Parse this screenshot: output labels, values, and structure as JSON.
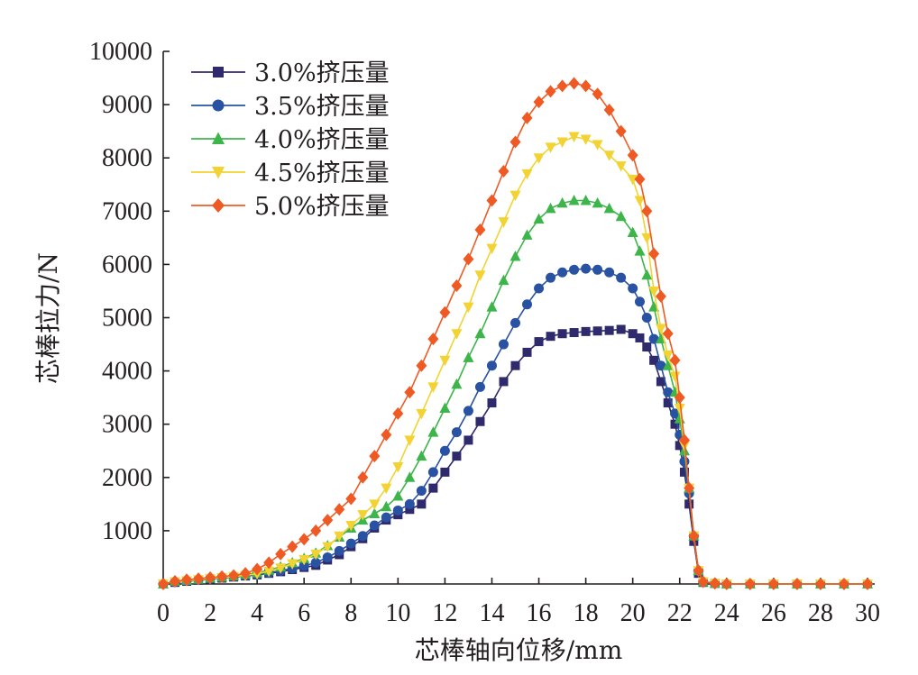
{
  "chart_data": {
    "type": "line",
    "title": "",
    "xlabel": "芯棒轴向位移/mm",
    "ylabel": "芯棒拉力/N",
    "xlim": [
      0,
      30
    ],
    "ylim": [
      0,
      10000
    ],
    "xticks": [
      "0",
      "2",
      "4",
      "6",
      "8",
      "10",
      "12",
      "14",
      "16",
      "18",
      "20",
      "22",
      "24",
      "26",
      "28",
      "30"
    ],
    "yticks": [
      "1000",
      "2000",
      "3000",
      "4000",
      "5000",
      "6000",
      "7000",
      "8000",
      "9000",
      "10000"
    ],
    "grid": false,
    "legend_position": "top-left",
    "series": [
      {
        "name": "3.0%挤压量",
        "color": "#2e2a6b",
        "marker": "square",
        "x": [
          0,
          0.5,
          1,
          1.5,
          2,
          2.5,
          3,
          3.5,
          4,
          4.5,
          5,
          5.5,
          6,
          6.5,
          7,
          7.5,
          8,
          8.5,
          9,
          9.5,
          10,
          10.5,
          11,
          11.5,
          12,
          12.5,
          13,
          13.5,
          14,
          14.5,
          15,
          15.5,
          16,
          16.5,
          17,
          17.5,
          18,
          18.5,
          19,
          19.5,
          20,
          20.3,
          20.6,
          20.9,
          21.2,
          21.5,
          21.8,
          22,
          22.2,
          22.4,
          22.6,
          22.8,
          23,
          23.5,
          24,
          25,
          26,
          27,
          28,
          29,
          30
        ],
        "y": [
          0,
          30,
          50,
          70,
          90,
          110,
          130,
          150,
          170,
          200,
          230,
          270,
          310,
          350,
          450,
          550,
          700,
          850,
          1050,
          1200,
          1300,
          1400,
          1500,
          1800,
          2100,
          2400,
          2700,
          3050,
          3400,
          3800,
          4100,
          4350,
          4550,
          4650,
          4700,
          4720,
          4740,
          4750,
          4760,
          4780,
          4700,
          4620,
          4450,
          4200,
          3800,
          3400,
          3000,
          2600,
          2100,
          1500,
          800,
          200,
          30,
          10,
          0,
          0,
          0,
          0,
          0,
          0,
          0
        ]
      },
      {
        "name": "3.5%挤压量",
        "color": "#2952a3",
        "marker": "circle",
        "x": [
          0,
          0.5,
          1,
          1.5,
          2,
          2.5,
          3,
          3.5,
          4,
          4.5,
          5,
          5.5,
          6,
          6.5,
          7,
          7.5,
          8,
          8.5,
          9,
          9.5,
          10,
          10.5,
          11,
          11.5,
          12,
          12.5,
          13,
          13.5,
          14,
          14.5,
          15,
          15.5,
          16,
          16.5,
          17,
          17.5,
          18,
          18.5,
          19,
          19.5,
          20,
          20.3,
          20.6,
          20.9,
          21.2,
          21.5,
          21.8,
          22,
          22.2,
          22.4,
          22.6,
          22.8,
          23,
          23.5,
          24,
          25,
          26,
          27,
          28,
          29,
          30
        ],
        "y": [
          0,
          40,
          60,
          80,
          100,
          120,
          140,
          160,
          180,
          210,
          250,
          290,
          340,
          400,
          500,
          620,
          760,
          900,
          1100,
          1250,
          1380,
          1500,
          1750,
          2100,
          2500,
          2850,
          3250,
          3700,
          4100,
          4500,
          4900,
          5250,
          5550,
          5750,
          5850,
          5900,
          5920,
          5900,
          5850,
          5750,
          5550,
          5300,
          5000,
          4600,
          4100,
          3600,
          3200,
          2800,
          2300,
          1700,
          900,
          250,
          40,
          10,
          0,
          0,
          0,
          0,
          0,
          0,
          0
        ]
      },
      {
        "name": "4.0%挤压量",
        "color": "#3db54a",
        "marker": "triangle-up",
        "x": [
          0,
          0.5,
          1,
          1.5,
          2,
          2.5,
          3,
          3.5,
          4,
          4.5,
          5,
          5.5,
          6,
          6.5,
          7,
          7.5,
          8,
          8.5,
          9,
          9.5,
          10,
          10.5,
          11,
          11.5,
          12,
          12.5,
          13,
          13.5,
          14,
          14.5,
          15,
          15.5,
          16,
          16.5,
          17,
          17.5,
          18,
          18.5,
          19,
          19.5,
          20,
          20.3,
          20.6,
          20.9,
          21.2,
          21.5,
          21.8,
          22,
          22.2,
          22.4,
          22.6,
          22.8,
          23,
          23.5,
          24,
          25,
          26,
          27,
          28,
          29,
          30
        ],
        "y": [
          0,
          50,
          70,
          90,
          110,
          130,
          150,
          180,
          210,
          260,
          320,
          400,
          480,
          580,
          720,
          880,
          1050,
          1200,
          1320,
          1450,
          1650,
          2000,
          2400,
          2850,
          3300,
          3750,
          4250,
          4700,
          5200,
          5700,
          6150,
          6550,
          6850,
          7050,
          7150,
          7200,
          7200,
          7150,
          7050,
          6900,
          6600,
          6250,
          5800,
          5200,
          4600,
          4100,
          3600,
          3100,
          2500,
          1800,
          900,
          250,
          40,
          10,
          0,
          0,
          0,
          0,
          0,
          0,
          0
        ]
      },
      {
        "name": "4.5%挤压量",
        "color": "#f2d333",
        "marker": "triangle-down",
        "x": [
          0,
          0.5,
          1,
          1.5,
          2,
          2.5,
          3,
          3.5,
          4,
          4.5,
          5,
          5.5,
          6,
          6.5,
          7,
          7.5,
          8,
          8.5,
          9,
          9.5,
          10,
          10.5,
          11,
          11.5,
          12,
          12.5,
          13,
          13.5,
          14,
          14.5,
          15,
          15.5,
          16,
          16.5,
          17,
          17.5,
          18,
          18.5,
          19,
          19.5,
          20,
          20.3,
          20.6,
          20.9,
          21.2,
          21.5,
          21.8,
          22,
          22.2,
          22.4,
          22.6,
          22.8,
          23,
          23.5,
          24,
          25,
          26,
          27,
          28,
          29,
          30
        ],
        "y": [
          0,
          40,
          60,
          80,
          100,
          120,
          140,
          160,
          190,
          240,
          300,
          380,
          460,
          560,
          700,
          900,
          1100,
          1300,
          1500,
          1800,
          2200,
          2700,
          3200,
          3700,
          4200,
          4700,
          5200,
          5800,
          6300,
          6800,
          7300,
          7700,
          8000,
          8200,
          8300,
          8400,
          8350,
          8250,
          8050,
          7850,
          7600,
          7200,
          6500,
          5500,
          4800,
          4300,
          3900,
          3300,
          2600,
          1800,
          900,
          250,
          40,
          10,
          0,
          0,
          0,
          0,
          0,
          0,
          0
        ]
      },
      {
        "name": "5.0%挤压量",
        "color": "#ef5a24",
        "marker": "diamond",
        "x": [
          0,
          0.5,
          1,
          1.5,
          2,
          2.5,
          3,
          3.5,
          4,
          4.5,
          5,
          5.5,
          6,
          6.5,
          7,
          7.5,
          8,
          8.5,
          9,
          9.5,
          10,
          10.5,
          11,
          11.5,
          12,
          12.5,
          13,
          13.5,
          14,
          14.5,
          15,
          15.5,
          16,
          16.5,
          17,
          17.5,
          18,
          18.5,
          19,
          19.5,
          20,
          20.3,
          20.6,
          20.9,
          21.2,
          21.5,
          21.8,
          22,
          22.2,
          22.4,
          22.6,
          22.8,
          23,
          23.5,
          24,
          25,
          26,
          27,
          28,
          29,
          30
        ],
        "y": [
          0,
          50,
          80,
          100,
          120,
          140,
          160,
          200,
          280,
          400,
          560,
          700,
          840,
          1000,
          1200,
          1400,
          1600,
          2000,
          2400,
          2800,
          3200,
          3600,
          4100,
          4600,
          5100,
          5600,
          6100,
          6650,
          7200,
          7750,
          8300,
          8750,
          9050,
          9250,
          9350,
          9400,
          9350,
          9200,
          8900,
          8500,
          8050,
          7600,
          7000,
          6200,
          5400,
          4700,
          4200,
          3500,
          2700,
          1800,
          900,
          250,
          40,
          10,
          0,
          0,
          0,
          0,
          0,
          0,
          0
        ]
      }
    ]
  }
}
